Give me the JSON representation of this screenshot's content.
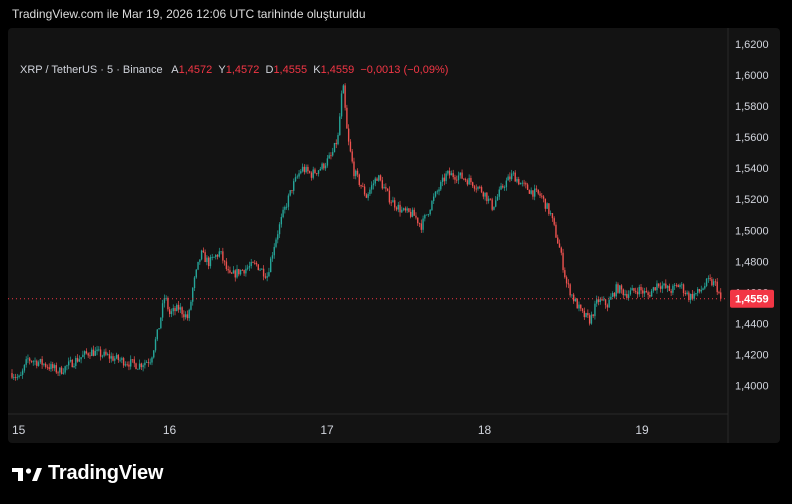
{
  "header": {
    "caption": "TradingView.com ile Mar 19, 2026 12:06 UTC tarihinde oluşturuldu"
  },
  "legend": {
    "symbol": "XRP / TetherUS · 5 · Binance",
    "open_label": "A",
    "open_value": "1,4572",
    "high_label": "Y",
    "high_value": "1,4572",
    "low_label": "D",
    "low_value": "1,4555",
    "close_label": "K",
    "close_value": "1,4559",
    "change": "−0,0013 (−0,09%)"
  },
  "logo": {
    "text": "TradingView",
    "icon": "tradingview-logo-icon"
  },
  "colors": {
    "up": "#26a69a",
    "down": "#ef5350",
    "background": "#131313",
    "page": "#000000",
    "price_line": "#f23645",
    "axis_text": "#d1d4dc"
  },
  "chart_data": {
    "type": "candlestick",
    "title": "XRP / TetherUS · 5 · Binance",
    "xlabel": "",
    "ylabel": "",
    "x_tick_labels": [
      "15",
      "16",
      "17",
      "18",
      "19"
    ],
    "x_tick_times": [
      0,
      1,
      2,
      3,
      4
    ],
    "y_tick_labels": [
      "1,4000",
      "1,4200",
      "1,4400",
      "1,4600",
      "1,4800",
      "1,5000",
      "1,5200",
      "1,5400",
      "1,5600",
      "1,5800",
      "1,6000",
      "1,6200"
    ],
    "y_tick_values": [
      1.4,
      1.42,
      1.44,
      1.46,
      1.48,
      1.5,
      1.52,
      1.54,
      1.56,
      1.58,
      1.6,
      1.62
    ],
    "ylim": [
      1.384,
      1.648
    ],
    "xlim_days": [
      0,
      4.69
    ],
    "current_price": 1.4559,
    "current_price_label": "1,4559",
    "grid": false,
    "close_path": [
      [
        0.0,
        1.408
      ],
      [
        0.05,
        1.404
      ],
      [
        0.1,
        1.417
      ],
      [
        0.2,
        1.414
      ],
      [
        0.3,
        1.409
      ],
      [
        0.4,
        1.416
      ],
      [
        0.5,
        1.422
      ],
      [
        0.6,
        1.419
      ],
      [
        0.7,
        1.416
      ],
      [
        0.8,
        1.413
      ],
      [
        0.88,
        1.417
      ],
      [
        0.93,
        1.436
      ],
      [
        0.97,
        1.458
      ],
      [
        1.0,
        1.446
      ],
      [
        1.06,
        1.45
      ],
      [
        1.12,
        1.443
      ],
      [
        1.15,
        1.464
      ],
      [
        1.2,
        1.485
      ],
      [
        1.25,
        1.479
      ],
      [
        1.32,
        1.486
      ],
      [
        1.38,
        1.47
      ],
      [
        1.45,
        1.474
      ],
      [
        1.55,
        1.478
      ],
      [
        1.62,
        1.471
      ],
      [
        1.67,
        1.493
      ],
      [
        1.72,
        1.51
      ],
      [
        1.78,
        1.528
      ],
      [
        1.84,
        1.54
      ],
      [
        1.9,
        1.536
      ],
      [
        1.97,
        1.541
      ],
      [
        2.03,
        1.548
      ],
      [
        2.07,
        1.56
      ],
      [
        2.1,
        1.595
      ],
      [
        2.13,
        1.56
      ],
      [
        2.17,
        1.538
      ],
      [
        2.25,
        1.522
      ],
      [
        2.32,
        1.535
      ],
      [
        2.4,
        1.52
      ],
      [
        2.48,
        1.512
      ],
      [
        2.55,
        1.51
      ],
      [
        2.6,
        1.503
      ],
      [
        2.68,
        1.521
      ],
      [
        2.76,
        1.536
      ],
      [
        2.84,
        1.535
      ],
      [
        2.92,
        1.531
      ],
      [
        3.0,
        1.524
      ],
      [
        3.05,
        1.515
      ],
      [
        3.12,
        1.529
      ],
      [
        3.18,
        1.536
      ],
      [
        3.24,
        1.529
      ],
      [
        3.3,
        1.525
      ],
      [
        3.36,
        1.522
      ],
      [
        3.42,
        1.51
      ],
      [
        3.48,
        1.487
      ],
      [
        3.52,
        1.466
      ],
      [
        3.57,
        1.455
      ],
      [
        3.62,
        1.446
      ],
      [
        3.67,
        1.442
      ],
      [
        3.72,
        1.455
      ],
      [
        3.78,
        1.452
      ],
      [
        3.84,
        1.463
      ],
      [
        3.9,
        1.459
      ],
      [
        3.98,
        1.462
      ],
      [
        4.04,
        1.458
      ],
      [
        4.1,
        1.466
      ],
      [
        4.18,
        1.461
      ],
      [
        4.24,
        1.465
      ],
      [
        4.3,
        1.457
      ],
      [
        4.36,
        1.46
      ],
      [
        4.42,
        1.467
      ],
      [
        4.47,
        1.465
      ],
      [
        4.5,
        1.4559
      ]
    ]
  }
}
